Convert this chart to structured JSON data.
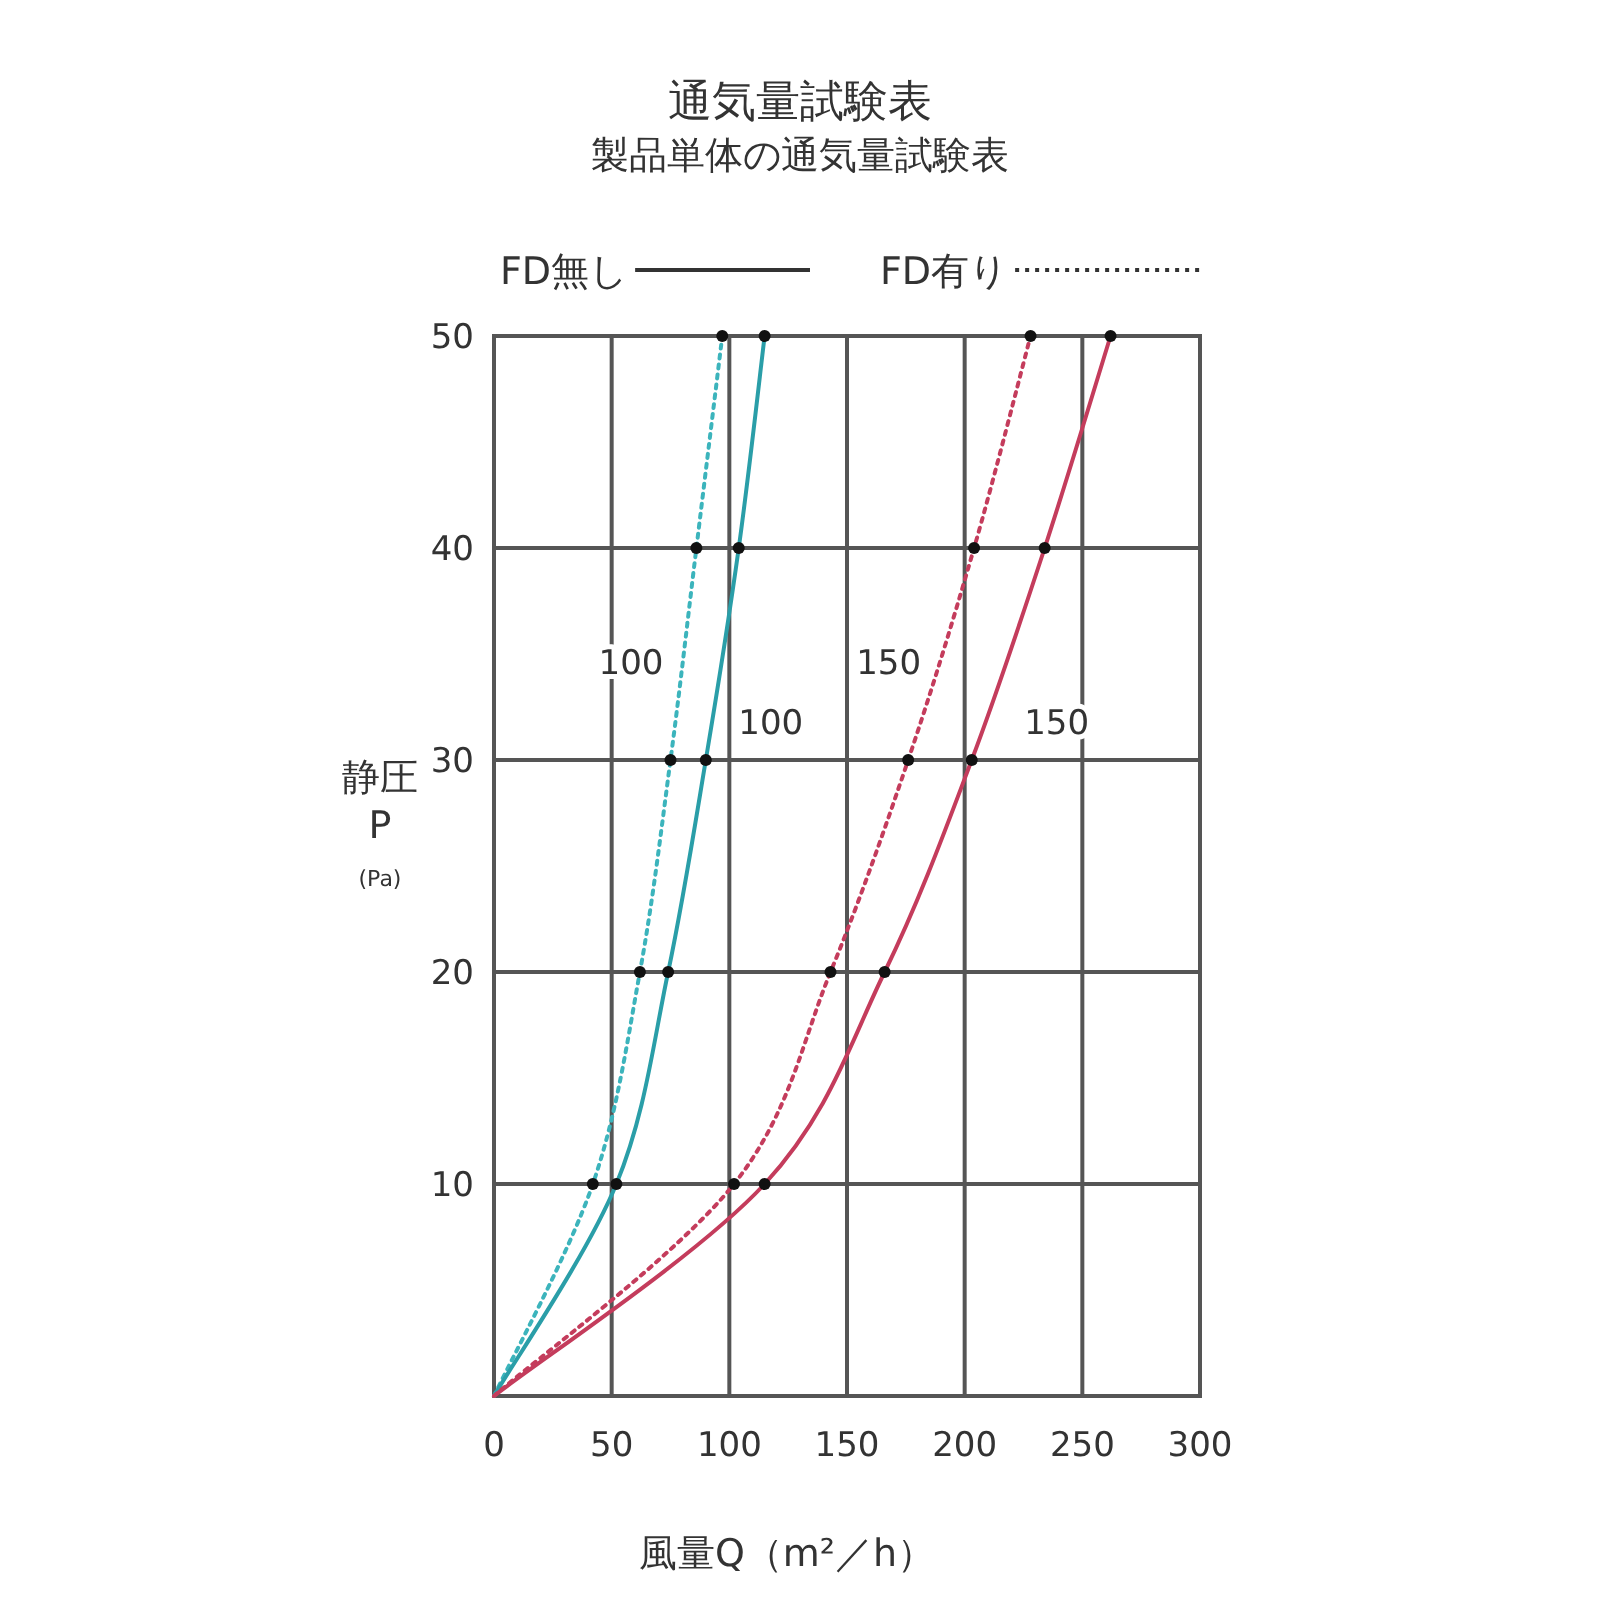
{
  "chart_data": {
    "type": "line",
    "title": "通気量試験表",
    "subtitle": "製品単体の通気量試験表",
    "xlabel": "風量Q（m²／h）",
    "ylabel": "静圧\nP\n(Pa)",
    "xlim": [
      0,
      300
    ],
    "xticks": [
      0,
      50,
      100,
      150,
      200,
      250,
      300
    ],
    "ylim": [
      0,
      50
    ],
    "yticks": [
      {
        "value": 0,
        "label": null
      },
      10,
      20,
      30,
      40,
      50
    ],
    "grid": true,
    "legend": "top",
    "marker": "circle",
    "annotations": [
      "FD無し",
      "FD有り"
    ],
    "series": [
      {
        "name": "100",
        "color": "#3cb4bc",
        "line_style": "dotted",
        "x": [
          0,
          42,
          62,
          75,
          86,
          97
        ],
        "values": [
          0,
          10,
          20,
          30,
          40,
          50
        ]
      },
      {
        "name": "100",
        "color": "#2a9ea8",
        "line_style": "solid",
        "x": [
          0,
          52,
          74,
          90,
          104,
          115
        ],
        "values": [
          0,
          10,
          20,
          30,
          40,
          50
        ]
      },
      {
        "name": "150",
        "color": "#c43c5c",
        "line_style": "dotted",
        "x": [
          0,
          102,
          143,
          176,
          204,
          228
        ],
        "values": [
          0,
          10,
          20,
          30,
          40,
          50
        ]
      },
      {
        "name": "150",
        "color": "#c43c5c",
        "line_style": "solid",
        "x": [
          0,
          115,
          166,
          203,
          234,
          262
        ],
        "values": [
          0,
          10,
          20,
          30,
          40,
          50
        ]
      }
    ]
  }
}
